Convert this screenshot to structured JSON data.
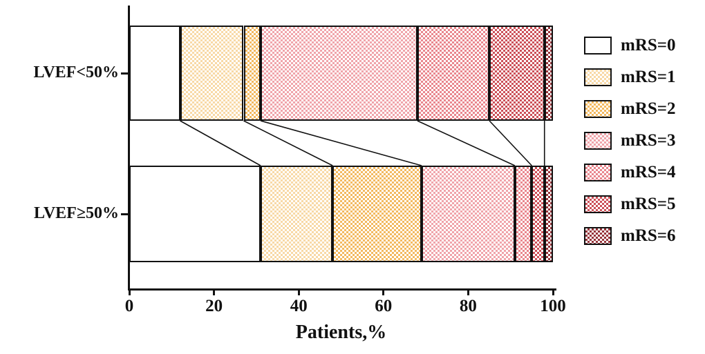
{
  "chart_data": {
    "type": "bar",
    "stacked": true,
    "orientation": "horizontal",
    "title": "",
    "xlabel": "Patients,%",
    "ylabel": "",
    "xlim": [
      0,
      100
    ],
    "xticks": [
      0,
      20,
      40,
      60,
      80,
      100
    ],
    "grid": false,
    "legend_position": "right",
    "categories": [
      "LVEF<50%",
      "LVEF≥50%"
    ],
    "series": [
      {
        "name": "mRS=0",
        "values": [
          12,
          31
        ],
        "color": "#ffffff"
      },
      {
        "name": "mRS=1",
        "values": [
          15,
          17
        ],
        "color": "#f8d9a6"
      },
      {
        "name": "mRS=2",
        "values": [
          4,
          21
        ],
        "color": "#f3b95f"
      },
      {
        "name": "mRS=3",
        "values": [
          37,
          22
        ],
        "color": "#f0a4aa"
      },
      {
        "name": "mRS=4",
        "values": [
          17,
          4
        ],
        "color": "#e9868d"
      },
      {
        "name": "mRS=5",
        "values": [
          13,
          3
        ],
        "color": "#cc5058"
      },
      {
        "name": "mRS=6",
        "values": [
          2,
          2
        ],
        "color": "#96343a"
      }
    ]
  }
}
